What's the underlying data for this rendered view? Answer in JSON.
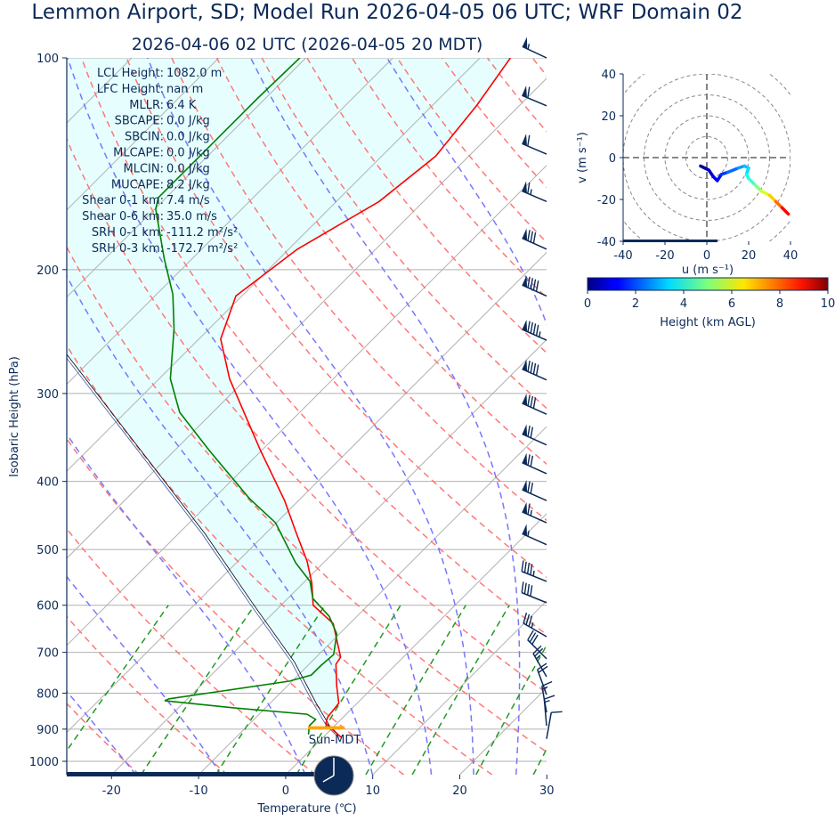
{
  "title": "Lemmon Airport, SD; Model Run 2026-04-05 06 UTC; WRF Domain 02",
  "subtitle": "2026-04-06 02 UTC  (2026-04-05 20 MDT)",
  "colors": {
    "text": "#0c2a57",
    "temperature": "#ff0000",
    "dewpoint": "#008000",
    "parcel": "#000000",
    "cin_shade": "#e6fffe",
    "lcl_marker": "#ffa500",
    "isotherm": "#b0b0b0",
    "dry_adiabat": "#ff7777",
    "moist_adiabat": "#7777ff",
    "mixing_ratio": "#229922",
    "barb": "#0c2a57"
  },
  "stats": [
    {
      "label": "LCL Height:",
      "value": "1082.0 m"
    },
    {
      "label": "LFC Height:",
      "value": "nan m"
    },
    {
      "label": "MLLR:",
      "value": "6.4 K"
    },
    {
      "label": "SBCAPE:",
      "value": "0.0 J/kg"
    },
    {
      "label": "SBCIN:",
      "value": "0.0 J/kg"
    },
    {
      "label": "MLCAPE:",
      "value": "0.0 J/kg"
    },
    {
      "label": "MLCIN:",
      "value": "0.0 J/kg"
    },
    {
      "label": "MUCAPE:",
      "value": "8.2 J/kg"
    },
    {
      "label": "Shear 0-1 km:",
      "value": "7.4 m/s"
    },
    {
      "label": "Shear 0-6 km:",
      "value": "35.0 m/s"
    },
    {
      "label": "SRH 0-1 km:",
      "value": "-111.2 m²/s²"
    },
    {
      "label": "SRH 0-3 km:",
      "value": "-172.7 m²/s²"
    }
  ],
  "time_label": "Sun-MDT",
  "clock": {
    "hour": 20,
    "minute": 0
  },
  "chart_data": [
    {
      "type": "line",
      "name": "skew-T log-P",
      "xlabel": "Temperature (℃)",
      "ylabel": "Isobaric Height (hPa)",
      "xlim": [
        -25,
        30
      ],
      "ylim": [
        1045,
        100
      ],
      "xticks": [
        -20,
        -10,
        0,
        10,
        20,
        30
      ],
      "yticks": [
        100,
        200,
        300,
        400,
        500,
        600,
        700,
        800,
        900,
        1000
      ],
      "lcl_pressure": 896,
      "temperature": {
        "p": [
          100,
          117,
          138,
          160,
          187,
          218,
          251,
          286,
          361,
          426,
          475,
          519,
          558,
          600,
          637,
          711,
          728,
          780,
          827,
          865,
          883,
          904,
          926
        ],
        "T": [
          -56.5,
          -54.9,
          -53.8,
          -55.1,
          -59.0,
          -60.7,
          -57.5,
          -51.9,
          -40.2,
          -31.6,
          -26.4,
          -22.1,
          -19.0,
          -16.3,
          -11.9,
          -7.2,
          -6.9,
          -4.4,
          -2.1,
          -1.8,
          -1.3,
          0.4,
          2.2
        ]
      },
      "dewpoint": {
        "p": [
          100,
          114,
          134,
          158,
          164,
          193,
          217,
          243,
          286,
          319,
          361,
          423,
          458,
          522,
          555,
          587,
          622,
          659,
          705,
          732,
          754,
          769,
          815,
          820,
          840,
          857,
          872,
          890,
          916
        ],
        "T": [
          -80.7,
          -80.9,
          -80.9,
          -80.9,
          -79.9,
          -73.2,
          -68.1,
          -64.0,
          -58.7,
          -53.8,
          -46.1,
          -35.9,
          -30.1,
          -23.2,
          -19.4,
          -17.1,
          -13.2,
          -10.3,
          -8.3,
          -8.5,
          -8.5,
          -10.3,
          -22.1,
          -22.4,
          -13.4,
          -4.5,
          -2.9,
          -2.9,
          -2.0
        ]
      },
      "parcel": {
        "p": [
          100,
          264,
          475,
          600,
          723,
          827,
          890,
          926
        ],
        "T": [
          -110,
          -73.4,
          -36.9,
          -23.1,
          -11.9,
          -4.7,
          -0.6,
          2.2
        ]
      },
      "wind_barbs": {
        "units": "kt",
        "p": [
          100,
          117,
          137,
          160,
          187,
          218,
          252,
          287,
          321,
          355,
          390,
          426,
          458,
          492,
          555,
          595,
          665,
          715,
          758,
          804,
          852,
          890,
          929
        ],
        "dir": [
          295,
          293,
          293,
          293,
          294,
          294,
          294,
          294,
          294,
          294,
          294,
          294,
          294,
          294,
          292,
          292,
          300,
          315,
          330,
          340,
          350,
          355,
          10
        ],
        "speed": [
          55,
          60,
          60,
          65,
          80,
          90,
          95,
          90,
          80,
          70,
          70,
          70,
          65,
          55,
          45,
          40,
          35,
          30,
          25,
          20,
          15,
          15,
          10
        ]
      }
    },
    {
      "type": "line",
      "name": "hodograph",
      "xlabel": "u (m s⁻¹)",
      "ylabel": "v (m s⁻¹)",
      "xlim": [
        -40,
        40
      ],
      "ylim": [
        -40,
        40
      ],
      "xticks": [
        -40,
        -20,
        0,
        20,
        40
      ],
      "yticks": [
        -40,
        -20,
        0,
        20,
        40
      ],
      "rings": [
        10,
        20,
        30,
        40,
        50
      ],
      "u": [
        -3,
        -1,
        1,
        3,
        5,
        7,
        10,
        15,
        18,
        20,
        19,
        20,
        23,
        26,
        30,
        33,
        36,
        39
      ],
      "v": [
        -4,
        -5,
        -6,
        -9,
        -11,
        -8,
        -7,
        -5,
        -4,
        -5,
        -8,
        -10,
        -13,
        -16,
        -18,
        -21,
        -24,
        -27
      ],
      "height_km": [
        0,
        0.3,
        0.6,
        0.9,
        1.2,
        1.5,
        2.0,
        2.6,
        3.0,
        3.3,
        3.6,
        4.0,
        4.6,
        5.4,
        6.3,
        7.2,
        8.2,
        9.3
      ],
      "colorbar": {
        "label": "Height (km AGL)",
        "range": [
          0,
          10
        ],
        "ticks": [
          0,
          2,
          4,
          6,
          8,
          10
        ]
      }
    }
  ]
}
